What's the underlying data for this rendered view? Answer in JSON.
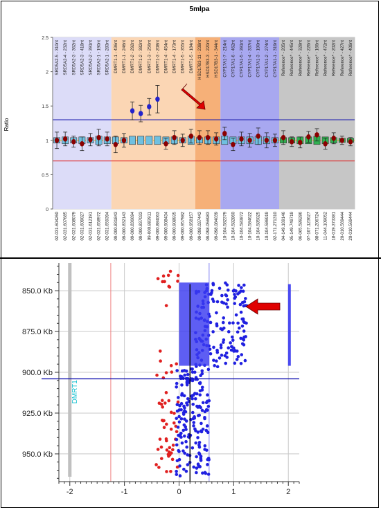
{
  "chart_data": [
    {
      "type": "scatter",
      "title": "5mlpa",
      "ylabel": "Ratio",
      "ylim": [
        0,
        2.5
      ],
      "yticks": [
        "0",
        "0.5",
        "1",
        "1.5",
        "2",
        "2.5"
      ],
      "probes": [
        "SRD5A2-5 - 310nt",
        "SRD5A2-4 - 232nt",
        "SRD5A2-3 - 362nt",
        "SRD5A2-3 - 418nt",
        "SRD5A2-2 - 391nt",
        "SRD5A2-1 - 190nt",
        "SRD5A2-1 - 283nt",
        "DMRT1-1 - 436nt",
        "DMRT1-1 - 246nt",
        "DMRT1-2 - 292nt",
        "DMRT1-2 - 382nt",
        "DMRT1-3 - 256nt",
        "DMRT1-3 - 208nt",
        "DMRT1-4 - 454nt",
        "DMRT1-4 - 173nt",
        "DMRT1-5 - 355nt",
        "DMRT1-5 - 184nt",
        "HSD17B3-11 - 238nt",
        "HSD17B3-3 - 220nt",
        "HSD17B3-1 - 344nt",
        "CYP17A1-7 - 214nt",
        "CYP17A1-6 - 462nt",
        "CYP17A1-5 - 391nt",
        "CYP17A1-4 - 337nt",
        "CYP17A1-3 - 190nt",
        "CYP17A1-2 - 274nt",
        "CYP17A1-1 - 319nt",
        "Reference* - 205nt",
        "Reference* - 445nt",
        "Reference* - 328nt",
        "Reference* - 226nt",
        "Reference* - 166nt",
        "Reference* - 472nt",
        "Reference* - 202nt",
        "Reference* - 427nt",
        "Reference* - 409nt"
      ],
      "positions": [
        "02-031.604260",
        "02-031.607685",
        "02-031.608079",
        "02-031.609027",
        "02-031.612191",
        "02-031.658972",
        "02-031.659394",
        "09-000.831843",
        "09-000.832143",
        "09-000.836694",
        "09-000.837033",
        "09-000.883911",
        "09-000.884063",
        "09-000.908434",
        "09-000.908935",
        "09-000.957982",
        "09-000.958157",
        "09-098.037443",
        "09-098.056983",
        "09-098.084039",
        "10-104.582379",
        "10-104.582860",
        "10-104.583872",
        "10-104.584622",
        "10-104.585025",
        "10-104.586919",
        "02-171.271310",
        "04-149.169146",
        "05-149.749719",
        "06-065.589286",
        "07-107.123627",
        "08-071.206724",
        "11-044.109052",
        "18-019.373381",
        "20-010.569444",
        "20-010.569444"
      ],
      "groups": [
        {
          "name": "SRD5A2",
          "from": 0,
          "to": 6,
          "color": "#dcdcf8"
        },
        {
          "name": "DMRT1",
          "from": 7,
          "to": 16,
          "color": "#fbd6b4"
        },
        {
          "name": "HSD17B3",
          "from": 17,
          "to": 19,
          "color": "#f6b078"
        },
        {
          "name": "CYP17A1",
          "from": 20,
          "to": 26,
          "color": "#a8a8f0"
        },
        {
          "name": "Reference",
          "from": 27,
          "to": 35,
          "color": "#c6c6c6"
        }
      ],
      "ratio": [
        1.0,
        1.02,
        0.98,
        0.95,
        1.01,
        1.04,
        1.02,
        0.94,
        1.0,
        1.43,
        1.39,
        1.49,
        1.6,
        0.95,
        1.04,
        1.0,
        1.06,
        1.04,
        1.04,
        1.02,
        1.1,
        0.94,
        1.02,
        1.0,
        1.06,
        1.0,
        1.0,
        1.04,
        0.98,
        0.97,
        1.05,
        1.08,
        0.95,
        1.03,
        1.0,
        0.98
      ],
      "error": [
        0.12,
        0.1,
        0.08,
        0.1,
        0.09,
        0.12,
        0.1,
        0.12,
        0.1,
        0.13,
        0.12,
        0.12,
        0.2,
        0.08,
        0.1,
        0.09,
        0.1,
        0.1,
        0.1,
        0.09,
        0.09,
        0.09,
        0.1,
        0.1,
        0.12,
        0.11,
        0.09,
        0.1,
        0.07,
        0.08,
        0.08,
        0.09,
        0.08,
        0.08,
        0.06,
        0.06
      ],
      "box_half": [
        0.04,
        0.05,
        0.04,
        0.05,
        0.04,
        0.06,
        0.05,
        0.05,
        0.04,
        0.06,
        0.06,
        0.06,
        0.06,
        0.05,
        0.05,
        0.04,
        0.06,
        0.04,
        0.05,
        0.05,
        0.06,
        0.05,
        0.05,
        0.05,
        0.06,
        0.05,
        0.04,
        0.04,
        0.04,
        0.05,
        0.05,
        0.06,
        0.05,
        0.04,
        0.03,
        0.03
      ],
      "point_color": [
        "#8b0000",
        "#8b0000",
        "#8b0000",
        "#8b0000",
        "#8b0000",
        "#8b0000",
        "#8b0000",
        "#8b0000",
        "#8b0000",
        "#2222cc",
        "#2222cc",
        "#2222cc",
        "#2222cc",
        "#8b0000",
        "#8b0000",
        "#8b0000",
        "#8b0000",
        "#8b0000",
        "#8b0000",
        "#8b0000",
        "#8b0000",
        "#8b0000",
        "#8b0000",
        "#8b0000",
        "#8b0000",
        "#8b0000",
        "#8b0000",
        "#8b0000",
        "#8b0000",
        "#8b0000",
        "#8b0000",
        "#8b0000",
        "#8b0000",
        "#8b0000",
        "#8b0000",
        "#8b0000"
      ],
      "box_color": [
        "#6fc0e0",
        "#6fc0e0",
        "#6fc0e0",
        "#6fc0e0",
        "#6fc0e0",
        "#6fc0e0",
        "#6fc0e0",
        "#6fc0e0",
        "#6fc0e0",
        "#6fc0e0",
        "#6fc0e0",
        "#6fc0e0",
        "#6fc0e0",
        "#6fc0e0",
        "#6fc0e0",
        "#6fc0e0",
        "#6fc0e0",
        "#6fc0e0",
        "#6fc0e0",
        "#6fc0e0",
        "#6fc0e0",
        "#6fc0e0",
        "#6fc0e0",
        "#6fc0e0",
        "#6fc0e0",
        "#6fc0e0",
        "#6fc0e0",
        "#30b050",
        "#30b050",
        "#30b050",
        "#30b050",
        "#30b050",
        "#30b050",
        "#30b050",
        "#30b050",
        "#30b050"
      ],
      "upper_threshold": 1.3,
      "lower_threshold": 0.7,
      "upper_color": "#2020b0",
      "lower_color": "#e02020",
      "arrow_color": "#e00000"
    },
    {
      "type": "scatter",
      "region_label": "DMRT1",
      "xlim": [
        -2.2,
        2.2
      ],
      "xticks": [
        "-2",
        "-1",
        "0",
        "1",
        "2"
      ],
      "ylim_kb": [
        833,
        967
      ],
      "yticks": [
        "850.0 Kb",
        "875.0 Kb",
        "900.0 Kb",
        "925.0 Kb",
        "950.0 Kb"
      ],
      "ytick_values": [
        850,
        875,
        900,
        925,
        950
      ],
      "segment": {
        "kb_from": 845,
        "kb_to": 896,
        "x_from": 0.0,
        "x_to": 0.55,
        "color": "#3a3af0"
      },
      "gene_bar": {
        "kb_from": 833,
        "kb_to": 964,
        "x": -2.0,
        "color": "#c0c0c0"
      },
      "right_bar": {
        "kb_from": 846,
        "kb_to": 896,
        "x": 2.02,
        "color": "#4a4af0"
      },
      "breakpoint_kb": 904,
      "vline_red_x": -1.25,
      "vline_blue_x": 0.55,
      "vline_black_x": 0.2,
      "colors": {
        "red": "#e02020",
        "blue": "#2020e0",
        "breakpoint": "#1010b0"
      },
      "arrow_color": "#e00000"
    }
  ]
}
